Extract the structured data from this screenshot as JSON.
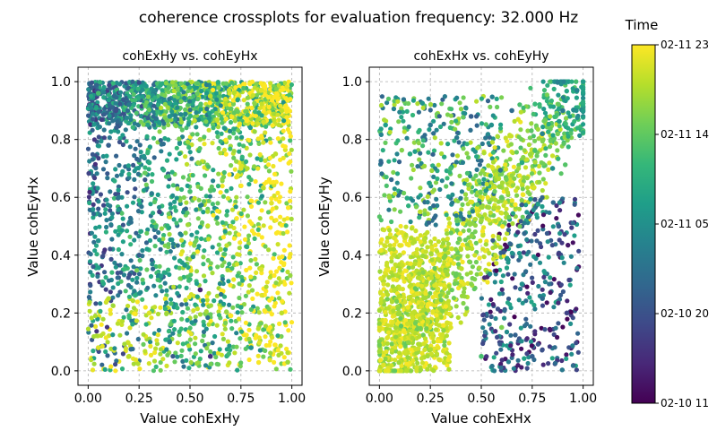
{
  "suptitle": "coherence crossplots for evaluation frequency: 32.000 Hz",
  "colorbar": {
    "title": "Time",
    "colormap": "viridis",
    "tick_labels": [
      "02-10 11",
      "02-10 20",
      "02-11 05",
      "02-11 14",
      "02-11 23"
    ],
    "stops": [
      "#440154",
      "#482878",
      "#3e4a89",
      "#31688e",
      "#26828e",
      "#1f9e89",
      "#35b779",
      "#6ece58",
      "#b5de2b",
      "#fde725"
    ]
  },
  "chart_data": [
    {
      "type": "scatter",
      "title": "cohExHy vs. cohEyHx",
      "xlabel": "Value cohExHy",
      "ylabel": "Value cohEyHx",
      "xlim": [
        -0.05,
        1.05
      ],
      "ylim": [
        -0.05,
        1.05
      ],
      "xticks": [
        0.0,
        0.25,
        0.5,
        0.75,
        1.0
      ],
      "xtick_labels": [
        "0.00",
        "0.25",
        "0.50",
        "0.75",
        "1.00"
      ],
      "yticks": [
        0.0,
        0.2,
        0.4,
        0.6,
        0.8,
        1.0
      ],
      "ytick_labels": [
        "0.0",
        "0.2",
        "0.4",
        "0.6",
        "0.8",
        "1.0"
      ],
      "grid": true,
      "color_by": "Time",
      "points": [
        {
          "x": 0.05,
          "y": 0.96,
          "t": 0.7
        },
        {
          "x": 0.2,
          "y": 0.92,
          "t": 0.4
        },
        {
          "x": 0.4,
          "y": 0.88,
          "t": 0.5
        },
        {
          "x": 0.6,
          "y": 0.95,
          "t": 0.9
        },
        {
          "x": 0.85,
          "y": 0.97,
          "t": 0.95
        },
        {
          "x": 0.95,
          "y": 0.9,
          "t": 0.9
        },
        {
          "x": 0.1,
          "y": 0.78,
          "t": 0.3
        },
        {
          "x": 0.3,
          "y": 0.72,
          "t": 0.6
        },
        {
          "x": 0.55,
          "y": 0.8,
          "t": 0.85
        },
        {
          "x": 0.75,
          "y": 0.7,
          "t": 0.95
        },
        {
          "x": 0.92,
          "y": 0.75,
          "t": 0.9
        },
        {
          "x": 0.15,
          "y": 0.6,
          "t": 0.4
        },
        {
          "x": 0.35,
          "y": 0.55,
          "t": 0.2
        },
        {
          "x": 0.5,
          "y": 0.62,
          "t": 0.7
        },
        {
          "x": 0.7,
          "y": 0.5,
          "t": 0.9
        },
        {
          "x": 0.9,
          "y": 0.58,
          "t": 0.95
        },
        {
          "x": 0.05,
          "y": 0.45,
          "t": 0.5
        },
        {
          "x": 0.25,
          "y": 0.4,
          "t": 0.3
        },
        {
          "x": 0.45,
          "y": 0.38,
          "t": 0.6
        },
        {
          "x": 0.65,
          "y": 0.42,
          "t": 0.85
        },
        {
          "x": 0.85,
          "y": 0.35,
          "t": 0.95
        },
        {
          "x": 0.1,
          "y": 0.25,
          "t": 0.9
        },
        {
          "x": 0.3,
          "y": 0.2,
          "t": 0.95
        },
        {
          "x": 0.55,
          "y": 0.28,
          "t": 0.1
        },
        {
          "x": 0.75,
          "y": 0.22,
          "t": 0.6
        },
        {
          "x": 0.95,
          "y": 0.2,
          "t": 0.9
        },
        {
          "x": 0.05,
          "y": 0.08,
          "t": 0.95
        },
        {
          "x": 0.2,
          "y": 0.05,
          "t": 0.9
        },
        {
          "x": 0.4,
          "y": 0.1,
          "t": 0.4
        },
        {
          "x": 0.6,
          "y": 0.05,
          "t": 0.15
        },
        {
          "x": 0.8,
          "y": 0.08,
          "t": 0.5
        },
        {
          "x": 0.98,
          "y": 0.03,
          "t": 0.85
        }
      ]
    },
    {
      "type": "scatter",
      "title": "cohExHx vs. cohEyHy",
      "xlabel": "Value cohExHx",
      "ylabel": "Value cohEyHy",
      "xlim": [
        -0.05,
        1.05
      ],
      "ylim": [
        -0.05,
        1.05
      ],
      "xticks": [
        0.0,
        0.25,
        0.5,
        0.75,
        1.0
      ],
      "xtick_labels": [
        "0.00",
        "0.25",
        "0.50",
        "0.75",
        "1.00"
      ],
      "yticks": [
        0.0,
        0.2,
        0.4,
        0.6,
        0.8,
        1.0
      ],
      "ytick_labels": [
        "0.0",
        "0.2",
        "0.4",
        "0.6",
        "0.8",
        "1.0"
      ],
      "grid": true,
      "color_by": "Time",
      "points": [
        {
          "x": 0.02,
          "y": 0.02,
          "t": 0.95
        },
        {
          "x": 0.1,
          "y": 0.1,
          "t": 0.95
        },
        {
          "x": 0.2,
          "y": 0.18,
          "t": 0.9
        },
        {
          "x": 0.3,
          "y": 0.3,
          "t": 0.95
        },
        {
          "x": 0.4,
          "y": 0.42,
          "t": 0.9
        },
        {
          "x": 0.5,
          "y": 0.52,
          "t": 0.85
        },
        {
          "x": 0.6,
          "y": 0.6,
          "t": 0.75
        },
        {
          "x": 0.7,
          "y": 0.72,
          "t": 0.6
        },
        {
          "x": 0.8,
          "y": 0.82,
          "t": 0.45
        },
        {
          "x": 0.9,
          "y": 0.9,
          "t": 0.4
        },
        {
          "x": 0.97,
          "y": 0.97,
          "t": 0.45
        },
        {
          "x": 0.05,
          "y": 0.6,
          "t": 0.85
        },
        {
          "x": 0.03,
          "y": 0.85,
          "t": 0.55
        },
        {
          "x": 0.1,
          "y": 0.4,
          "t": 0.9
        },
        {
          "x": 0.15,
          "y": 0.75,
          "t": 0.6
        },
        {
          "x": 0.25,
          "y": 0.85,
          "t": 0.4
        },
        {
          "x": 0.35,
          "y": 0.7,
          "t": 0.7
        },
        {
          "x": 0.45,
          "y": 0.88,
          "t": 0.3
        },
        {
          "x": 0.55,
          "y": 0.85,
          "t": 0.5
        },
        {
          "x": 0.65,
          "y": 0.9,
          "t": 0.35
        },
        {
          "x": 0.6,
          "y": 0.15,
          "t": 0.8
        },
        {
          "x": 0.7,
          "y": 0.3,
          "t": 0.5
        },
        {
          "x": 0.8,
          "y": 0.25,
          "t": 0.35
        },
        {
          "x": 0.88,
          "y": 0.5,
          "t": 0.3
        },
        {
          "x": 0.92,
          "y": 0.2,
          "t": 0.2
        },
        {
          "x": 0.5,
          "y": 0.05,
          "t": 0.7
        },
        {
          "x": 0.35,
          "y": 0.15,
          "t": 0.95
        },
        {
          "x": 0.2,
          "y": 0.55,
          "t": 0.9
        },
        {
          "x": 0.85,
          "y": 0.7,
          "t": 0.5
        },
        {
          "x": 0.75,
          "y": 0.05,
          "t": 0.3
        }
      ]
    }
  ]
}
